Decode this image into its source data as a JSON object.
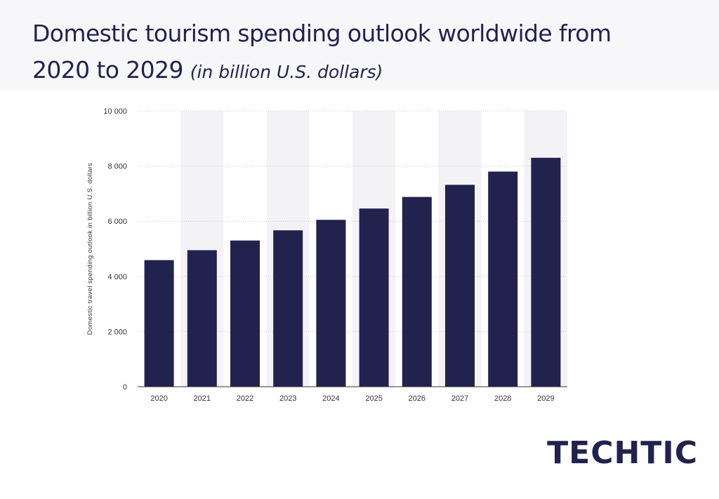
{
  "header": {
    "title": "Domestic tourism spending outlook worldwide from 2020 to 2029",
    "unit": "(in billion U.S. dollars)"
  },
  "brand": {
    "logo_text": "TECHTIC"
  },
  "colors": {
    "bar": "#22224e",
    "grid": "#c8c8d0",
    "band": "#f3f3f6",
    "text": "#333333"
  },
  "chart_data": {
    "type": "bar",
    "title": "Domestic tourism spending outlook worldwide from 2020 to 2029",
    "ylabel": "Domestic travel spending outlook in billion U.S. dollars",
    "xlabel": "",
    "categories": [
      "2020",
      "2021",
      "2022",
      "2023",
      "2024",
      "2025",
      "2026",
      "2027",
      "2028",
      "2029"
    ],
    "values": [
      4590,
      4950,
      5300,
      5670,
      6050,
      6460,
      6880,
      7320,
      7800,
      8300
    ],
    "ylim": [
      0,
      10000
    ],
    "yticks": [
      0,
      2000,
      4000,
      6000,
      8000,
      10000
    ],
    "ytick_labels": [
      "0",
      "2 000",
      "4 000",
      "6 000",
      "8 000",
      "10 000"
    ],
    "grid": true,
    "legend": false
  }
}
